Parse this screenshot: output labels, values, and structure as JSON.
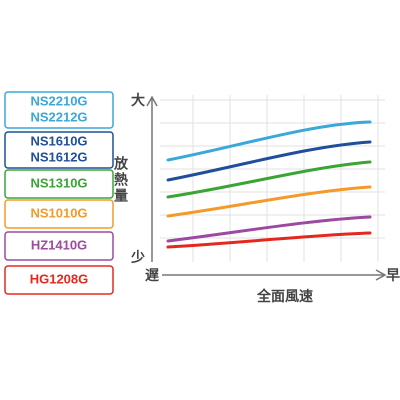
{
  "legend": [
    {
      "lines": [
        "NS2210G",
        "NS2212G"
      ]
    },
    {
      "lines": [
        "NS1610G",
        "NS1612G"
      ]
    },
    {
      "lines": [
        "NS1310G"
      ]
    },
    {
      "lines": [
        "NS1010G"
      ]
    },
    {
      "lines": [
        "HZ1410G"
      ]
    },
    {
      "lines": [
        "HG1208G"
      ]
    }
  ],
  "y_axis": {
    "top": "大",
    "bottom": "少",
    "label": "放熱量"
  },
  "x_axis": {
    "left": "遅",
    "right": "早",
    "label": "全面風速"
  }
}
